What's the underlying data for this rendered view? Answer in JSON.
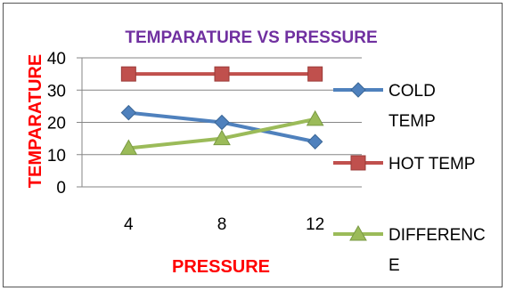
{
  "chart_data": {
    "type": "line",
    "title": "TEMPARATURE VS PRESSURE",
    "xlabel": "PRESSURE",
    "ylabel": "TEMPARATURE",
    "categories": [
      "4",
      "8",
      "12"
    ],
    "ylim": [
      0,
      40
    ],
    "yticks": [
      "0",
      "10",
      "20",
      "30",
      "40"
    ],
    "grid": true,
    "legend_position": "right",
    "colors": {
      "title": "#7030A0",
      "axis_titles": "#FF0000",
      "grid": "#868686"
    },
    "series": [
      {
        "name": "COLD TEMP",
        "values": [
          23,
          20,
          14
        ],
        "color": "#4F81BD",
        "marker": "diamond"
      },
      {
        "name": "HOT TEMP",
        "values": [
          35,
          35,
          35
        ],
        "color": "#C0504D",
        "marker": "square"
      },
      {
        "name": "DIFFERENCE",
        "values": [
          12,
          15,
          21
        ],
        "color": "#9BBB59",
        "marker": "triangle"
      }
    ]
  }
}
